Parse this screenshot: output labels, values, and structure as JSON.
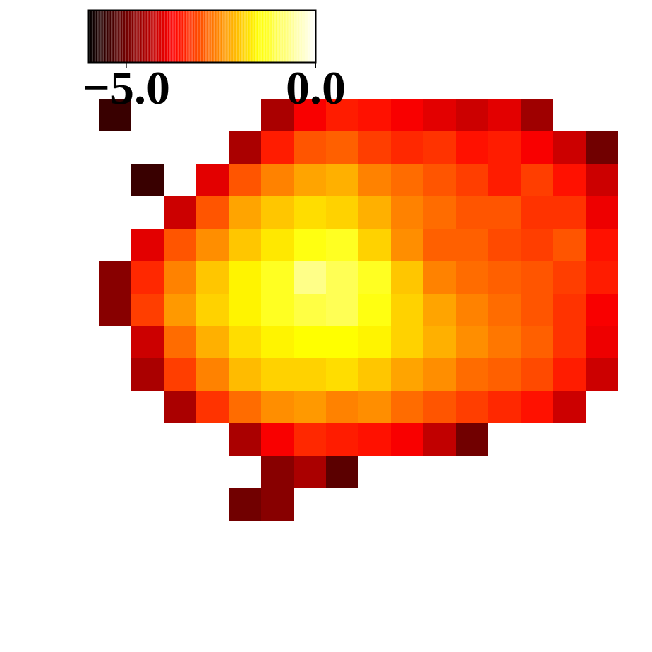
{
  "chart_data": {
    "type": "heatmap",
    "tick_labels": false,
    "color_range": [
      -6,
      0
    ],
    "color_ticks": [
      -5,
      0
    ],
    "cells": [
      [
        null,
        null,
        null,
        null,
        null,
        null,
        null,
        null,
        null,
        null,
        null,
        null,
        null,
        null,
        null,
        null,
        null,
        null,
        null,
        null
      ],
      [
        null,
        null,
        null,
        null,
        null,
        null,
        null,
        null,
        null,
        null,
        null,
        null,
        null,
        null,
        null,
        null,
        null,
        null,
        null,
        null
      ],
      [
        null,
        null,
        null,
        null,
        null,
        null,
        null,
        null,
        null,
        null,
        null,
        null,
        null,
        null,
        null,
        null,
        null,
        null,
        null,
        null
      ],
      [
        null,
        null,
        null,
        -5.5,
        null,
        null,
        null,
        null,
        -4.5,
        -3.8,
        -3.5,
        -3.6,
        -3.8,
        -4.0,
        -4.2,
        -4.0,
        -4.6,
        null,
        null,
        null
      ],
      [
        null,
        null,
        null,
        null,
        null,
        null,
        null,
        -4.5,
        -3.5,
        -3.0,
        -2.9,
        -3.2,
        -3.4,
        -3.3,
        -3.6,
        -3.5,
        -3.8,
        -4.2,
        -5.0,
        null
      ],
      [
        null,
        null,
        null,
        null,
        -5.5,
        null,
        -4.0,
        -3.0,
        -2.6,
        -2.3,
        -2.2,
        -2.6,
        -2.8,
        -3.0,
        -3.2,
        -3.5,
        -3.2,
        -3.6,
        -4.2,
        null
      ],
      [
        null,
        null,
        null,
        null,
        null,
        -4.2,
        -3.0,
        -2.3,
        -2.0,
        -1.8,
        -1.9,
        -2.2,
        -2.6,
        -2.8,
        -3.0,
        -3.0,
        -3.3,
        -3.3,
        -3.9,
        null
      ],
      [
        null,
        null,
        null,
        null,
        -4.0,
        -3.0,
        -2.5,
        -2.0,
        -1.7,
        -1.4,
        -1.3,
        -1.9,
        -2.5,
        -2.9,
        -2.9,
        -3.1,
        -3.2,
        -3.0,
        -3.6,
        null
      ],
      [
        null,
        null,
        null,
        -4.8,
        -3.4,
        -2.6,
        -2.0,
        -1.6,
        -1.3,
        -0.7,
        -1.0,
        -1.3,
        -2.0,
        -2.6,
        -2.8,
        -2.9,
        -3.0,
        -3.2,
        -3.5,
        null
      ],
      [
        null,
        null,
        null,
        -4.8,
        -3.2,
        -2.4,
        -1.9,
        -1.6,
        -1.3,
        -1.1,
        -1.0,
        -1.4,
        -1.9,
        -2.3,
        -2.6,
        -2.8,
        -3.0,
        -3.3,
        -3.8,
        null
      ],
      [
        null,
        null,
        null,
        null,
        -4.2,
        -2.8,
        -2.2,
        -1.8,
        -1.6,
        -1.5,
        -1.5,
        -1.6,
        -1.9,
        -2.2,
        -2.5,
        -2.7,
        -2.9,
        -3.3,
        -3.9,
        null
      ],
      [
        null,
        null,
        null,
        null,
        -4.5,
        -3.2,
        -2.6,
        -2.1,
        -1.9,
        -1.9,
        -1.8,
        -2.0,
        -2.3,
        -2.5,
        -2.8,
        -2.9,
        -3.1,
        -3.5,
        -4.2,
        null
      ],
      [
        null,
        null,
        null,
        null,
        null,
        -4.5,
        -3.3,
        -2.8,
        -2.5,
        -2.4,
        -2.6,
        -2.5,
        -2.8,
        -3.0,
        -3.2,
        -3.4,
        -3.6,
        -4.2,
        null,
        null
      ],
      [
        null,
        null,
        null,
        null,
        null,
        null,
        null,
        -4.5,
        -3.8,
        -3.4,
        -3.5,
        -3.6,
        -3.8,
        -4.3,
        -5.0,
        null,
        null,
        null,
        null,
        null
      ],
      [
        null,
        null,
        null,
        null,
        null,
        null,
        null,
        null,
        -4.8,
        -4.5,
        -5.2,
        null,
        null,
        null,
        null,
        null,
        null,
        null,
        null,
        null
      ],
      [
        null,
        null,
        null,
        null,
        null,
        null,
        null,
        -5.0,
        -4.8,
        null,
        null,
        null,
        null,
        null,
        null,
        null,
        null,
        null,
        null,
        null
      ],
      [
        null,
        null,
        null,
        null,
        null,
        null,
        null,
        null,
        null,
        null,
        null,
        null,
        null,
        null,
        null,
        null,
        null,
        null,
        null,
        null
      ],
      [
        null,
        null,
        null,
        null,
        null,
        null,
        null,
        null,
        null,
        null,
        null,
        null,
        null,
        null,
        null,
        null,
        null,
        null,
        null,
        null
      ],
      [
        null,
        null,
        null,
        null,
        null,
        null,
        null,
        null,
        null,
        null,
        null,
        null,
        null,
        null,
        null,
        null,
        null,
        null,
        null,
        null
      ],
      [
        null,
        null,
        null,
        null,
        null,
        null,
        null,
        null,
        null,
        null,
        null,
        null,
        null,
        null,
        null,
        null,
        null,
        null,
        null,
        null
      ]
    ]
  }
}
